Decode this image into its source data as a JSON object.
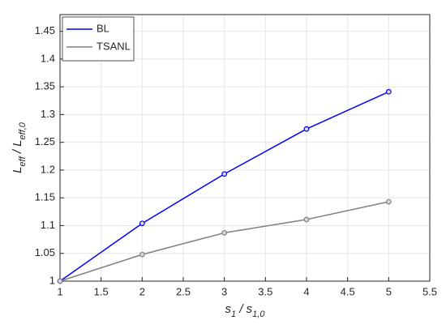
{
  "chart_data": {
    "type": "line",
    "xlabel": [
      "s",
      "1",
      " / ",
      "s",
      "1,0"
    ],
    "ylabel": [
      "L",
      "eff",
      " / ",
      "L",
      "eff,0"
    ],
    "x": [
      1,
      2,
      3,
      4,
      5
    ],
    "series": [
      {
        "name": "BL",
        "color": "#0000ff",
        "values": [
          1,
          1.104,
          1.193,
          1.274,
          1.341
        ]
      },
      {
        "name": "TSANL",
        "color": "#808080",
        "values": [
          1,
          1.048,
          1.087,
          1.111,
          1.143
        ]
      }
    ],
    "xlim": [
      1,
      5.5
    ],
    "xticks": [
      1,
      1.5,
      2,
      2.5,
      3,
      3.5,
      4,
      4.5,
      5,
      5.5
    ],
    "ylim": [
      1,
      1.48
    ],
    "yticks": [
      1,
      1.05,
      1.1,
      1.15,
      1.2,
      1.25,
      1.3,
      1.35,
      1.4,
      1.45
    ],
    "grid": true,
    "legend": "top-left"
  }
}
